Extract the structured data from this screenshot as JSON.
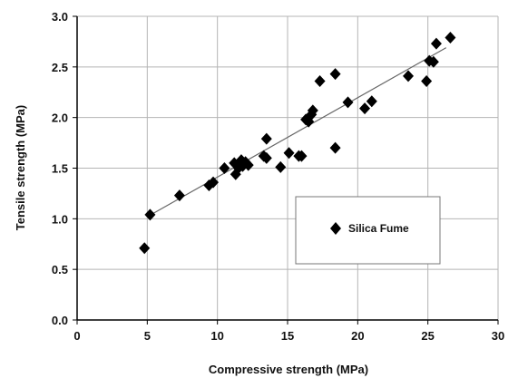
{
  "chart_data": {
    "type": "scatter",
    "xlabel": "Compressive strength  (MPa)",
    "ylabel": "Tensile strength (MPa)",
    "xlim": [
      0,
      30
    ],
    "ylim": [
      0,
      3.0
    ],
    "x_ticks": [
      0,
      5,
      10,
      15,
      20,
      25,
      30
    ],
    "y_ticks": [
      0.0,
      0.5,
      1.0,
      1.5,
      2.0,
      2.5,
      3.0
    ],
    "x_tick_labels": [
      "0",
      "5",
      "10",
      "15",
      "20",
      "25",
      "30"
    ],
    "y_tick_labels": [
      "0.0",
      "0.5",
      "1.0",
      "1.5",
      "2.0",
      "2.5",
      "3.0"
    ],
    "grid": true,
    "legend_position": "center-right",
    "series": [
      {
        "name": "Silica Fume",
        "marker": "diamond",
        "color": "#000000",
        "points": [
          {
            "x": 4.8,
            "y": 0.71
          },
          {
            "x": 5.2,
            "y": 1.04
          },
          {
            "x": 7.3,
            "y": 1.23
          },
          {
            "x": 9.4,
            "y": 1.33
          },
          {
            "x": 9.7,
            "y": 1.36
          },
          {
            "x": 10.5,
            "y": 1.5
          },
          {
            "x": 11.2,
            "y": 1.55
          },
          {
            "x": 11.3,
            "y": 1.44
          },
          {
            "x": 11.5,
            "y": 1.5
          },
          {
            "x": 11.7,
            "y": 1.58
          },
          {
            "x": 11.8,
            "y": 1.52
          },
          {
            "x": 12.0,
            "y": 1.56
          },
          {
            "x": 12.2,
            "y": 1.53
          },
          {
            "x": 13.3,
            "y": 1.62
          },
          {
            "x": 13.5,
            "y": 1.6
          },
          {
            "x": 13.5,
            "y": 1.79
          },
          {
            "x": 14.5,
            "y": 1.51
          },
          {
            "x": 15.1,
            "y": 1.65
          },
          {
            "x": 15.8,
            "y": 1.62
          },
          {
            "x": 16.0,
            "y": 1.62
          },
          {
            "x": 16.3,
            "y": 1.98
          },
          {
            "x": 16.5,
            "y": 1.96
          },
          {
            "x": 16.7,
            "y": 2.03
          },
          {
            "x": 16.8,
            "y": 2.07
          },
          {
            "x": 17.3,
            "y": 2.36
          },
          {
            "x": 18.4,
            "y": 1.7
          },
          {
            "x": 18.4,
            "y": 2.43
          },
          {
            "x": 19.3,
            "y": 2.15
          },
          {
            "x": 20.5,
            "y": 2.09
          },
          {
            "x": 21.0,
            "y": 2.16
          },
          {
            "x": 23.6,
            "y": 2.41
          },
          {
            "x": 24.9,
            "y": 2.36
          },
          {
            "x": 25.1,
            "y": 2.56
          },
          {
            "x": 25.4,
            "y": 2.55
          },
          {
            "x": 25.6,
            "y": 2.73
          },
          {
            "x": 26.6,
            "y": 2.79
          }
        ]
      }
    ],
    "trendline": {
      "x": [
        5.0,
        26.3
      ],
      "y": [
        1.02,
        2.69
      ],
      "color": "#666666"
    }
  }
}
